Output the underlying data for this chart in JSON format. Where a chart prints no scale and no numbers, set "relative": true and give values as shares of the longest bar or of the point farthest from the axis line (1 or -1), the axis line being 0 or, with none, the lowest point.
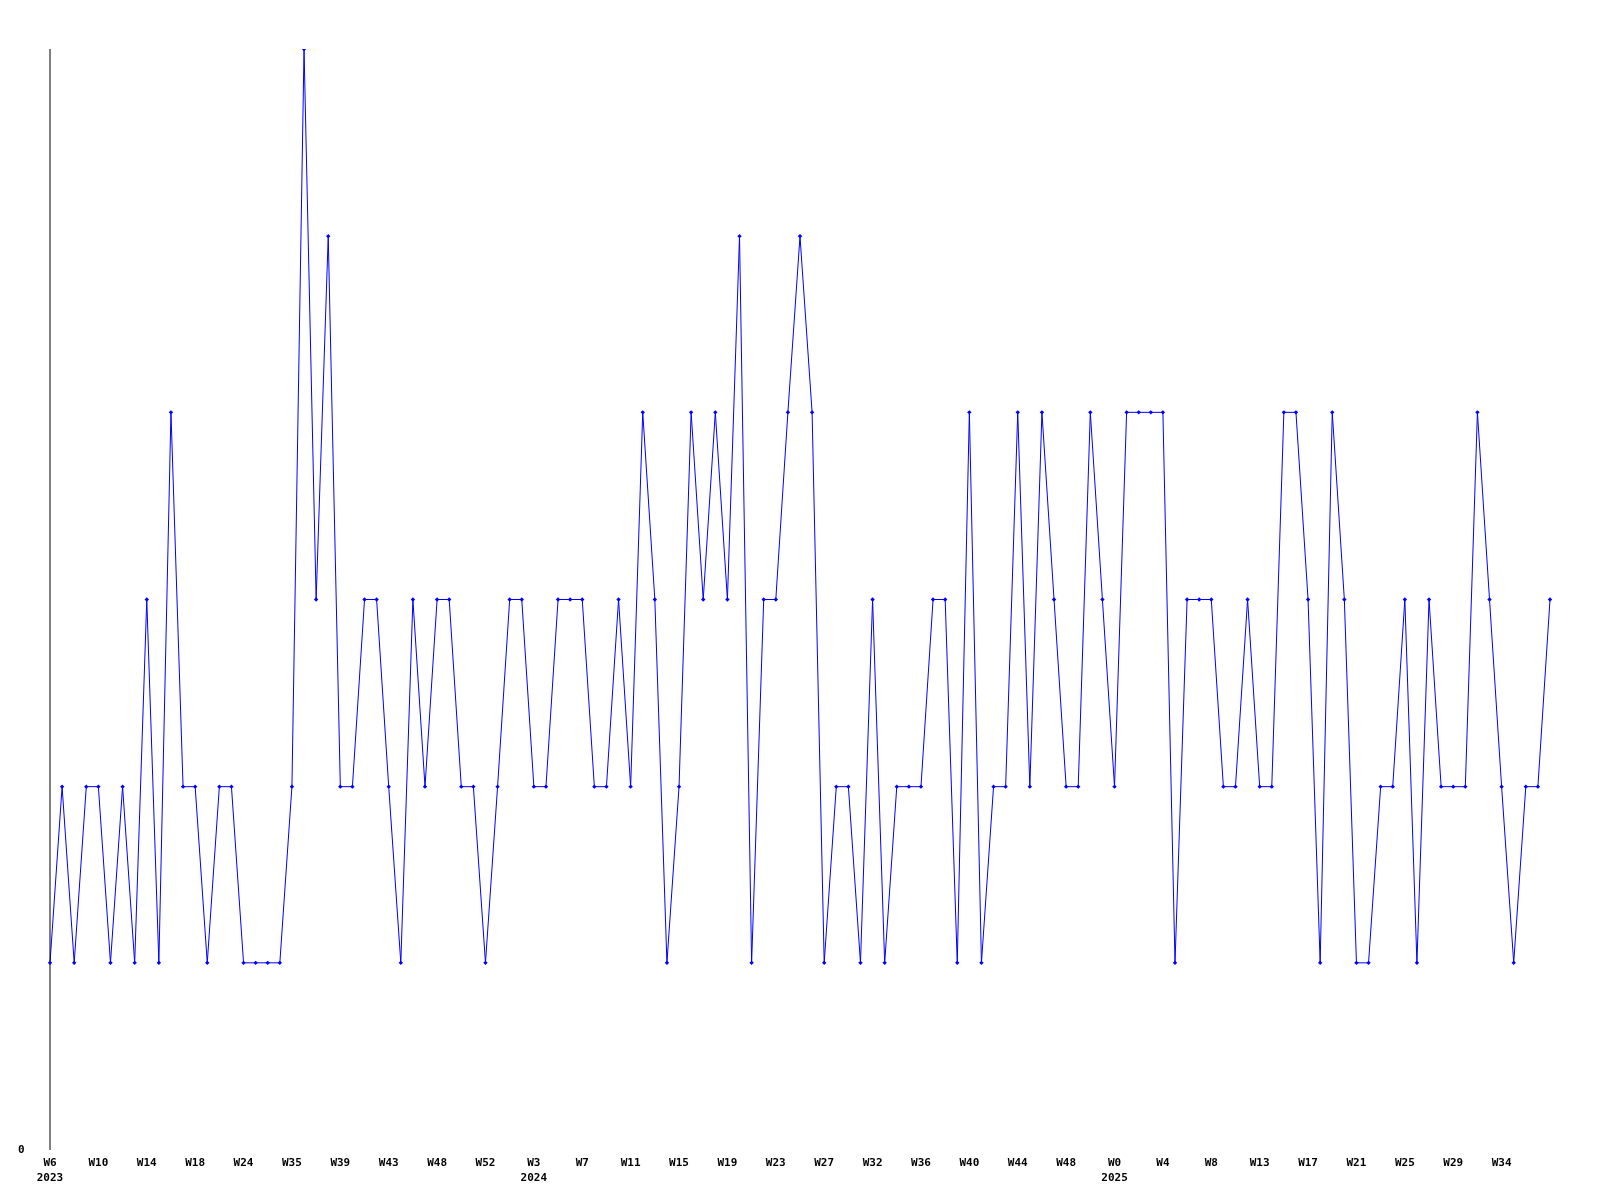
{
  "chart_data": {
    "type": "line",
    "relative": true,
    "annotations": [
      "0"
    ],
    "marker": "diamond",
    "line_style": "solid",
    "grid": false,
    "legend": false,
    "categories": [
      "W6\n2023",
      null,
      null,
      null,
      "W10",
      null,
      null,
      null,
      "W14",
      null,
      null,
      null,
      "W18",
      null,
      null,
      null,
      "W24",
      null,
      null,
      null,
      "W35",
      null,
      null,
      null,
      "W39",
      null,
      null,
      null,
      "W43",
      null,
      null,
      null,
      "W48",
      null,
      null,
      null,
      "W52",
      null,
      null,
      null,
      "W3\n2024",
      null,
      null,
      null,
      "W7",
      null,
      null,
      null,
      "W11",
      null,
      null,
      null,
      "W15",
      null,
      null,
      null,
      "W19",
      null,
      null,
      null,
      "W23",
      null,
      null,
      null,
      "W27",
      null,
      null,
      null,
      "W32",
      null,
      null,
      null,
      "W36",
      null,
      null,
      null,
      "W40",
      null,
      null,
      null,
      "W44",
      null,
      null,
      null,
      "W48",
      null,
      null,
      null,
      "W0\n2025",
      null,
      null,
      null,
      "W4",
      null,
      null,
      null,
      "W8",
      null,
      null,
      null,
      "W13",
      null,
      null,
      null,
      "W17",
      null,
      null,
      null,
      "W21",
      null,
      null,
      null,
      "W25",
      null,
      null,
      null,
      "W29",
      null,
      null,
      null,
      "W34",
      null,
      null,
      null,
      null
    ],
    "series": [
      {
        "color": "#0000ff",
        "values": [
          0.17,
          0.33,
          0.17,
          0.33,
          0.33,
          0.17,
          0.33,
          0.17,
          0.5,
          0.17,
          0.67,
          0.33,
          0.33,
          0.17,
          0.33,
          0.33,
          0.17,
          0.17,
          0.17,
          0.17,
          0.33,
          1,
          0.5,
          0.83,
          0.33,
          0.33,
          0.5,
          0.5,
          0.33,
          0.17,
          0.5,
          0.33,
          0.5,
          0.5,
          0.33,
          0.33,
          0.17,
          0.33,
          0.5,
          0.5,
          0.33,
          0.33,
          0.5,
          0.5,
          0.5,
          0.33,
          0.33,
          0.5,
          0.33,
          0.67,
          0.5,
          0.17,
          0.33,
          0.67,
          0.5,
          0.67,
          0.5,
          0.83,
          0.17,
          0.5,
          0.5,
          0.67,
          0.83,
          0.67,
          0.17,
          0.33,
          0.33,
          0.17,
          0.5,
          0.17,
          0.33,
          0.33,
          0.33,
          0.5,
          0.5,
          0.17,
          0.67,
          0.17,
          0.33,
          0.33,
          0.67,
          0.33,
          0.67,
          0.5,
          0.33,
          0.33,
          0.67,
          0.5,
          0.33,
          0.67,
          0.67,
          0.67,
          0.67,
          0.17,
          0.5,
          0.5,
          0.5,
          0.33,
          0.33,
          0.5,
          0.33,
          0.33,
          0.67,
          0.67,
          0.5,
          0.17,
          0.67,
          0.5,
          0.17,
          0.17,
          0.33,
          0.33,
          0.5,
          0.17,
          0.5,
          0.33,
          0.33,
          0.33,
          0.67,
          0.5,
          0.33,
          0.17,
          0.33,
          0.33,
          0.5
        ]
      }
    ]
  }
}
